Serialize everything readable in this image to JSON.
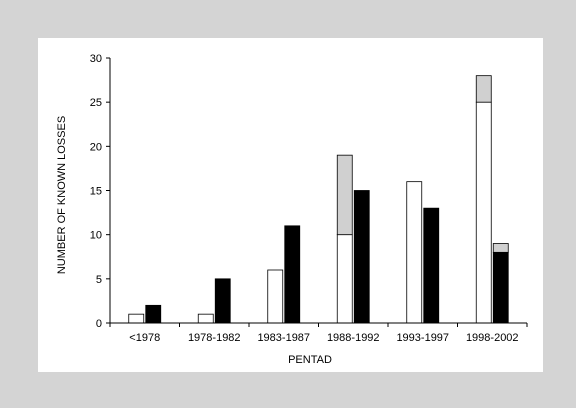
{
  "chart_data": {
    "type": "bar",
    "title": "",
    "xlabel": "PENTAD",
    "ylabel": "NUMBER OF KNOWN LOSSES",
    "ylim": [
      0,
      30
    ],
    "yticks": [
      0,
      5,
      10,
      15,
      20,
      25,
      30
    ],
    "grid": false,
    "legend": "none",
    "categories": [
      "<1978",
      "1978-1982",
      "1983-1987",
      "1988-1992",
      "1993-1997",
      "1998-2002"
    ],
    "groups": [
      {
        "style": "stacked",
        "series": [
          {
            "values": [
              1,
              1,
              6,
              10,
              16,
              25
            ],
            "color": "#ffffff"
          },
          {
            "values": [
              0,
              0,
              0,
              9,
              0,
              3
            ],
            "color": "#d0d0d0"
          }
        ]
      },
      {
        "style": "stacked",
        "series": [
          {
            "values": [
              2,
              5,
              11,
              15,
              13,
              8
            ],
            "color": "#000000"
          },
          {
            "values": [
              0,
              0,
              0,
              0,
              0,
              1
            ],
            "color": "#d0d0d0"
          }
        ]
      }
    ],
    "colors": {
      "background": "#d4d4d4",
      "panel": "#ffffff",
      "axis": "#000000",
      "bar_outline": "#000000"
    }
  }
}
